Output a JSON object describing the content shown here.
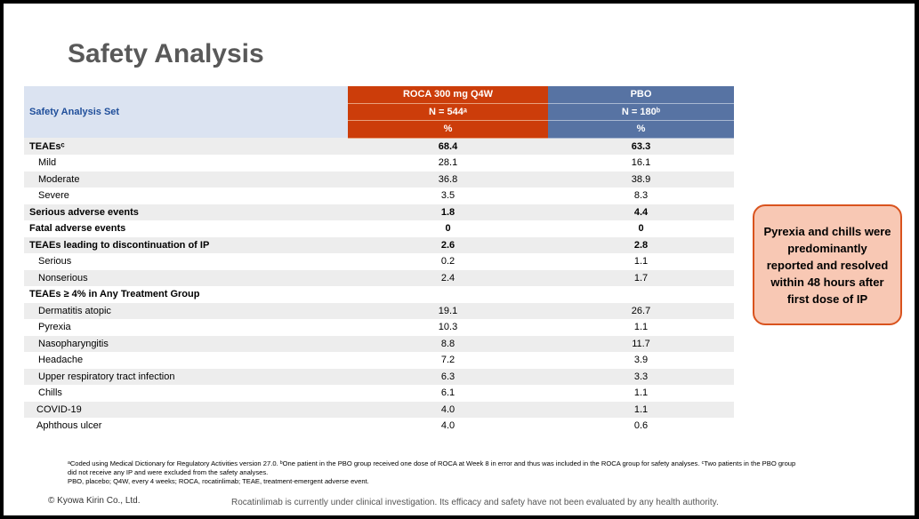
{
  "title": "Safety Analysis",
  "table": {
    "corner_label": "Safety Analysis Set",
    "col_roca": {
      "name": "ROCA 300 mg Q4W",
      "n": "N = 544ᵃ",
      "unit": "%"
    },
    "col_pbo": {
      "name": "PBO",
      "n": "N = 180ᵇ",
      "unit": "%"
    },
    "rows": [
      {
        "label": "TEAEsᶜ",
        "roca": "68.4",
        "pbo": "63.3",
        "style": "bold"
      },
      {
        "label": "Mild",
        "roca": "28.1",
        "pbo": "16.1",
        "style": "indent"
      },
      {
        "label": "Moderate",
        "roca": "36.8",
        "pbo": "38.9",
        "style": "indent"
      },
      {
        "label": "Severe",
        "roca": "3.5",
        "pbo": "8.3",
        "style": "indent"
      },
      {
        "label": "Serious adverse events",
        "roca": "1.8",
        "pbo": "4.4",
        "style": "bold"
      },
      {
        "label": "Fatal adverse events",
        "roca": "0",
        "pbo": "0",
        "style": "bold"
      },
      {
        "label": "TEAEs leading to discontinuation of IP",
        "roca": "2.6",
        "pbo": "2.8",
        "style": "bold"
      },
      {
        "label": "Serious",
        "roca": "0.2",
        "pbo": "1.1",
        "style": "indent"
      },
      {
        "label": "Nonserious",
        "roca": "2.4",
        "pbo": "1.7",
        "style": "indent"
      },
      {
        "label": "TEAEs ≥ 4% in Any Treatment Group",
        "roca": "",
        "pbo": "",
        "style": "bold"
      },
      {
        "label": "Dermatitis atopic",
        "roca": "19.1",
        "pbo": "26.7",
        "style": "indent"
      },
      {
        "label": "Pyrexia",
        "roca": "10.3",
        "pbo": "1.1",
        "style": "indent"
      },
      {
        "label": "Nasopharyngitis",
        "roca": "8.8",
        "pbo": "11.7",
        "style": "indent"
      },
      {
        "label": "Headache",
        "roca": "7.2",
        "pbo": "3.9",
        "style": "indent"
      },
      {
        "label": "Upper respiratory tract infection",
        "roca": "6.3",
        "pbo": "3.3",
        "style": "indent"
      },
      {
        "label": "Chills",
        "roca": "6.1",
        "pbo": "1.1",
        "style": "indent"
      },
      {
        "label": "COVID-19",
        "roca": "4.0",
        "pbo": "1.1",
        "style": "indent2"
      },
      {
        "label": "Aphthous ulcer",
        "roca": "4.0",
        "pbo": "0.6",
        "style": "indent2"
      }
    ]
  },
  "callout": "Pyrexia and chills were predominantly reported and resolved within 48 hours after first dose of IP",
  "footnotes": [
    "ᵃCoded using Medical Dictionary for Regulatory Activities version 27.0. ᵇOne patient in the PBO group received one dose of ROCA at Week 8 in error and thus was included in the ROCA group for safety analyses. ᶜTwo patients in the PBO group did not receive any IP and were excluded from the safety analyses.",
    "PBO, placebo; Q4W, every 4 weeks; ROCA, rocatinlimab; TEAE, treatment-emergent adverse event."
  ],
  "copyright": "© Kyowa Kirin Co., Ltd.",
  "disclaimer": "Rocatinlimab is currently under clinical investigation. Its efficacy and safety have not been evaluated by any health authority."
}
